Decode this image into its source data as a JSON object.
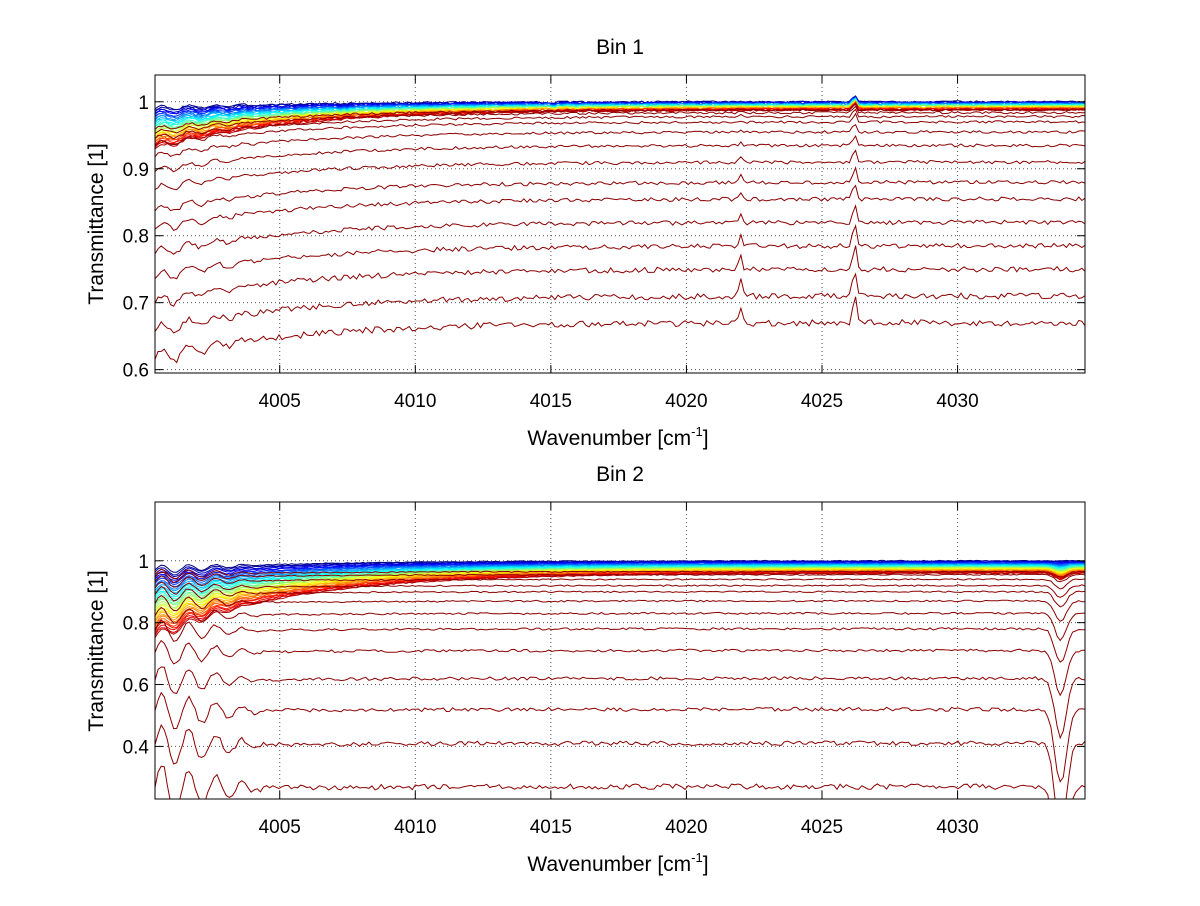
{
  "chart_data": [
    {
      "type": "line",
      "title": "Bin 1",
      "xlabel_main": "Wavenumber [cm",
      "xlabel_sup": "-1",
      "xlabel_end": "]",
      "ylabel": "Transmittance [1]",
      "xlim": [
        4000.4,
        4034.7
      ],
      "ylim": [
        0.595,
        1.04
      ],
      "xticks": [
        4005,
        4010,
        4015,
        4020,
        4025,
        4030
      ],
      "yticks": [
        0.6,
        0.7,
        0.8,
        0.9,
        1
      ],
      "ytick_labels": [
        "0.6",
        "0.7",
        "0.8",
        "0.9",
        "1"
      ],
      "grid": "dotted",
      "colormap": "jet",
      "series_count": 44,
      "series_note_absorption_lines_cm-1": [
        4022.0,
        4026.2
      ],
      "series_bottom_levels_at_right": [
        0.67,
        0.71,
        0.75,
        0.785,
        0.82,
        0.855,
        0.88,
        0.91,
        0.935,
        0.955,
        0.97,
        0.978,
        0.984,
        0.988
      ]
    },
    {
      "type": "line",
      "title": "Bin 2",
      "xlabel_main": "Wavenumber [cm",
      "xlabel_sup": "-1",
      "xlabel_end": "]",
      "ylabel": "Transmittance [1]",
      "xlim": [
        4000.4,
        4034.7
      ],
      "ylim": [
        0.23,
        1.19
      ],
      "xticks": [
        4005,
        4010,
        4015,
        4020,
        4025,
        4030
      ],
      "yticks": [
        0.4,
        0.6,
        0.8,
        1
      ],
      "ytick_labels": [
        "0.4",
        "0.6",
        "0.8",
        "1"
      ],
      "grid": "dotted",
      "colormap": "jet",
      "series_count": 44,
      "series_bottom_levels_at_right": [
        0.27,
        0.41,
        0.52,
        0.62,
        0.71,
        0.78,
        0.83,
        0.87,
        0.9,
        0.92,
        0.94,
        0.955,
        0.965
      ]
    }
  ]
}
